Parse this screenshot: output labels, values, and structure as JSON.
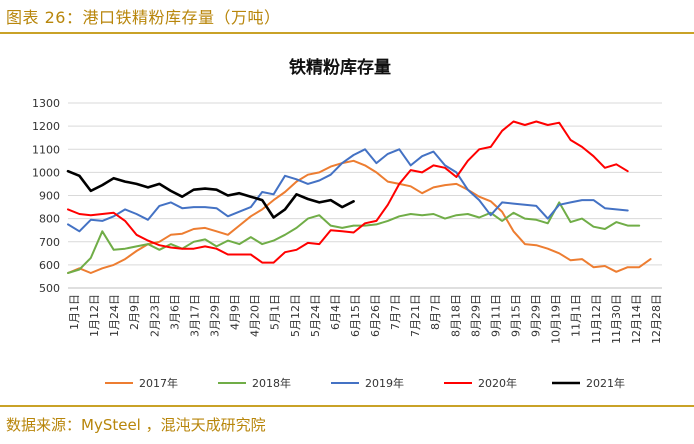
{
  "figure_label": "图表 26：港口铁精粉库存量（万吨）",
  "source": "数据来源：MySteel ，混沌天成研究院",
  "chart_data": {
    "type": "line",
    "title": "铁精粉库存量",
    "xlabel": "",
    "ylabel": "",
    "ylim": [
      500,
      1300
    ],
    "y_ticks": [
      500,
      600,
      700,
      800,
      900,
      1000,
      1100,
      1200,
      1300
    ],
    "grid": true,
    "legend_position": "bottom",
    "x": [
      "1月1日",
      "1月8日",
      "1月15日",
      "1月22日",
      "1月29日",
      "2月5日",
      "2月12日",
      "2月19日",
      "2月26日",
      "3月5日",
      "3月12日",
      "3月19日",
      "3月26日",
      "4月2日",
      "4月9日",
      "4月16日",
      "4月23日",
      "4月30日",
      "5月7日",
      "5月14日",
      "5月21日",
      "5月28日",
      "6月4日",
      "6月11日",
      "6月18日",
      "6月25日",
      "7月2日",
      "7月9日",
      "7月16日",
      "7月23日",
      "7月30日",
      "8月6日",
      "8月13日",
      "8月20日",
      "8月27日",
      "9月3日",
      "9月10日",
      "9月17日",
      "9月24日",
      "10月1日",
      "10月8日",
      "10月15日",
      "10月22日",
      "10月29日",
      "11月5日",
      "11月12日",
      "11月19日",
      "11月26日",
      "12月3日",
      "12月10日",
      "12月17日",
      "12月24日",
      "12月31日"
    ],
    "x_tick_labels": [
      "1月1日",
      "1月12日",
      "1月24日",
      "2月9日",
      "2月23日",
      "3月6日",
      "3月17日",
      "3月29日",
      "4月9日",
      "4月20日",
      "5月1日",
      "5月12日",
      "5月24日",
      "6月4日",
      "6月15日",
      "6月26日",
      "7月7日",
      "7月21日",
      "8月7日",
      "8月18日",
      "8月29日",
      "9月11日",
      "9月15日",
      "9月29日",
      "10月19日",
      "11月1日",
      "11月12日",
      "11月30日",
      "12月14日",
      "12月28日"
    ],
    "series": [
      {
        "name": "2017年",
        "color": "#ed7d31",
        "values": [
          565,
          585,
          565,
          585,
          600,
          625,
          660,
          690,
          700,
          730,
          735,
          755,
          760,
          745,
          730,
          770,
          810,
          840,
          880,
          915,
          960,
          990,
          1000,
          1025,
          1040,
          1050,
          1030,
          1000,
          960,
          950,
          940,
          910,
          935,
          945,
          950,
          925,
          895,
          875,
          830,
          745,
          690,
          685,
          670,
          650,
          620,
          625,
          590,
          595,
          570,
          590,
          590,
          625,
          null
        ]
      },
      {
        "name": "2018年",
        "color": "#70ad47",
        "values": [
          565,
          580,
          630,
          745,
          665,
          670,
          680,
          690,
          665,
          690,
          670,
          700,
          710,
          680,
          705,
          690,
          720,
          690,
          705,
          730,
          760,
          800,
          815,
          770,
          760,
          770,
          770,
          775,
          790,
          810,
          820,
          815,
          820,
          800,
          815,
          820,
          805,
          825,
          790,
          825,
          800,
          795,
          780,
          870,
          785,
          800,
          765,
          755,
          785,
          770,
          770,
          null,
          null
        ]
      },
      {
        "name": "2019年",
        "color": "#4472c4",
        "values": [
          775,
          745,
          795,
          790,
          810,
          840,
          820,
          795,
          855,
          870,
          845,
          850,
          850,
          845,
          810,
          830,
          850,
          915,
          905,
          985,
          970,
          950,
          965,
          990,
          1040,
          1075,
          1100,
          1040,
          1080,
          1100,
          1030,
          1070,
          1090,
          1030,
          1000,
          925,
          880,
          815,
          870,
          865,
          860,
          855,
          800,
          860,
          870,
          880,
          880,
          845,
          840,
          835,
          null,
          null,
          null
        ]
      },
      {
        "name": "2020年",
        "color": "#ff0000",
        "values": [
          840,
          820,
          815,
          820,
          825,
          790,
          730,
          705,
          685,
          675,
          670,
          670,
          680,
          670,
          645,
          645,
          645,
          610,
          610,
          655,
          665,
          695,
          690,
          750,
          745,
          740,
          780,
          790,
          860,
          950,
          1010,
          1000,
          1030,
          1020,
          980,
          1050,
          1100,
          1110,
          1180,
          1220,
          1205,
          1220,
          1205,
          1215,
          1140,
          1110,
          1070,
          1020,
          1035,
          1005,
          null,
          null,
          null
        ]
      },
      {
        "name": "2021年",
        "color": "#000000",
        "values": [
          1005,
          985,
          920,
          945,
          975,
          960,
          950,
          935,
          950,
          920,
          895,
          925,
          930,
          925,
          900,
          910,
          895,
          880,
          805,
          840,
          905,
          885,
          870,
          880,
          850,
          875,
          null,
          null,
          null,
          null,
          null,
          null,
          null,
          null,
          null,
          null,
          null,
          null,
          null,
          null,
          null,
          null,
          null,
          null,
          null,
          null,
          null,
          null,
          null,
          null,
          null,
          null,
          null
        ]
      }
    ]
  }
}
